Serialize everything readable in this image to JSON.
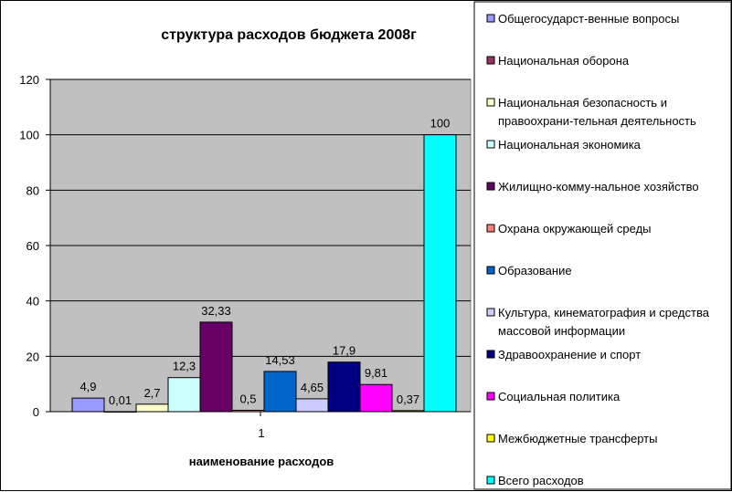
{
  "chart_data": {
    "type": "bar",
    "title": "структура расходов бюджета 2008г",
    "xlabel": "наименование расходов",
    "ylabel": "",
    "categories": [
      "1"
    ],
    "ylim": [
      0,
      120
    ],
    "yticks": [
      0,
      20,
      40,
      60,
      80,
      100,
      120
    ],
    "grid": true,
    "legend_position": "right",
    "plot_background": "#C0C0C0",
    "series": [
      {
        "name": "Общегосударст-венные вопросы",
        "values": [
          4.9
        ],
        "label": "4,9",
        "color": "#9999FF"
      },
      {
        "name": "Национальная оборона",
        "values": [
          0.01
        ],
        "label": "0,01",
        "color": "#993366"
      },
      {
        "name": "Национальная безопасность и правоохрани-тельная деятельность",
        "values": [
          2.7
        ],
        "label": "2,7",
        "color": "#FFFFCC"
      },
      {
        "name": "Национальная экономика",
        "values": [
          12.3
        ],
        "label": "12,3",
        "color": "#CCFFFF"
      },
      {
        "name": "Жилищно-комму-нальное хозяйство",
        "values": [
          32.33
        ],
        "label": "32,33",
        "color": "#660066"
      },
      {
        "name": "Охрана окружающей среды",
        "values": [
          0.5
        ],
        "label": "0,5",
        "color": "#FF8080"
      },
      {
        "name": "Образование",
        "values": [
          14.53
        ],
        "label": "14,53",
        "color": "#0066CC"
      },
      {
        "name": "Культура, кинематография и средства массовой информации",
        "values": [
          4.65
        ],
        "label": "4,65",
        "color": "#CCCCFF"
      },
      {
        "name": "Здравоохранение и спорт",
        "values": [
          17.9
        ],
        "label": "17,9",
        "color": "#000080"
      },
      {
        "name": "Социальная политика",
        "values": [
          9.81
        ],
        "label": "9,81",
        "color": "#FF00FF"
      },
      {
        "name": "Межбюджетные трансферты",
        "values": [
          0.37
        ],
        "label": "0,37",
        "color": "#FFFF00"
      },
      {
        "name": "Всего расходов",
        "values": [
          100
        ],
        "label": "100",
        "color": "#00FFFF"
      }
    ]
  }
}
